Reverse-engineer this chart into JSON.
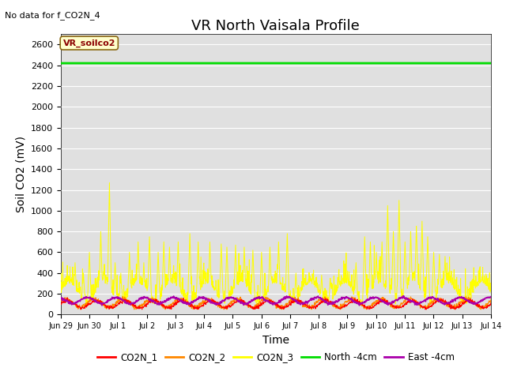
{
  "title": "VR North Vaisala Profile",
  "ylabel": "Soil CO2 (mV)",
  "xlabel": "Time",
  "annotation_text": "No data for f_CO2N_4",
  "box_label": "VR_soilco2",
  "ylim": [
    0,
    2700
  ],
  "yticks": [
    0,
    200,
    400,
    600,
    800,
    1000,
    1200,
    1400,
    1600,
    1800,
    2000,
    2200,
    2400,
    2600
  ],
  "background_color": "#e0e0e0",
  "title_fontsize": 13,
  "axis_label_fontsize": 10,
  "tick_fontsize": 8,
  "legend_entries": [
    "CO2N_1",
    "CO2N_2",
    "CO2N_3",
    "North -4cm",
    "East -4cm"
  ],
  "legend_colors": [
    "#ff0000",
    "#ff8800",
    "#ffff00",
    "#00dd00",
    "#aa00aa"
  ],
  "north_4cm_value": 2420,
  "num_days": 16,
  "xtick_positions": [
    0,
    1,
    2,
    3,
    4,
    5,
    6,
    7,
    8,
    9,
    10,
    11,
    12,
    13,
    14,
    15
  ],
  "xtick_labels": [
    "Jun 29",
    "Jun 30",
    "Jul 1",
    "Jul 2",
    "Jul 3",
    "Jul 4",
    "Jul 5",
    "Jul 6",
    "Jul 7",
    "Jul 8",
    "Jul 9",
    "Jul 10",
    "Jul 11",
    "Jul 12",
    "Jul 13",
    "Jul 14"
  ]
}
